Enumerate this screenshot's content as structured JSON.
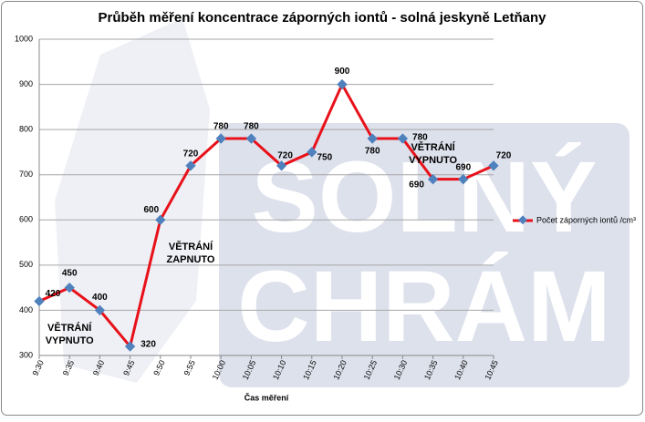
{
  "chart_data": {
    "type": "line",
    "title": "Průběh měření koncentrace záporných iontů  - solná jeskyně Letňany",
    "x_label": "Čas měření",
    "watermark": [
      "SOLNÝ",
      "CHRÁM"
    ],
    "categories": [
      "9:30",
      "9:35",
      "9:40",
      "9:45",
      "9:50",
      "9:55",
      "10:00",
      "10:05",
      "10:10",
      "10:15",
      "10:20",
      "10:25",
      "10:30",
      "10:35",
      "10:40",
      "10:45"
    ],
    "series": [
      {
        "name": "Počet záporných iontů /cm³",
        "color": "#e8111a",
        "marker_color": "#4f81bd",
        "values": [
          420,
          450,
          400,
          320,
          600,
          720,
          780,
          780,
          720,
          750,
          900,
          780,
          780,
          690,
          690,
          720
        ]
      }
    ],
    "ylim": [
      300,
      1000
    ],
    "yticks": [
      300,
      400,
      500,
      600,
      700,
      800,
      900,
      1000
    ],
    "grid": true,
    "legend": "right",
    "annotations": [
      {
        "lines": [
          "VĚTRÁNÍ",
          "VYPNUTO"
        ],
        "x": "9:35",
        "y": 360
      },
      {
        "lines": [
          "VĚTRÁNÍ",
          "ZAPNUTO"
        ],
        "x": "9:55",
        "y": 540
      },
      {
        "lines": [
          "VĚTRÁNÍ",
          "VYPNUTO"
        ],
        "x": "10:35",
        "y": 760
      }
    ]
  }
}
